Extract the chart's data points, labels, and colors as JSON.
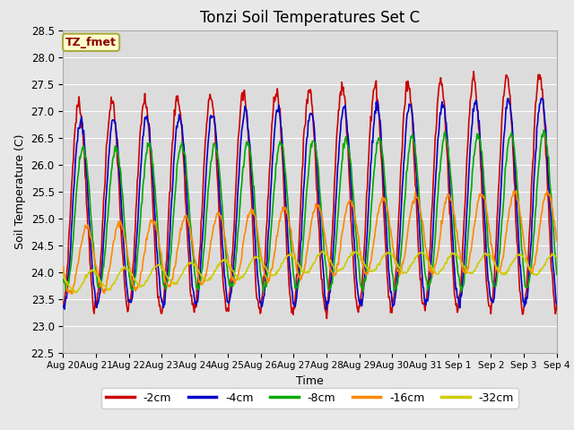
{
  "title": "Tonzi Soil Temperatures Set C",
  "xlabel": "Time",
  "ylabel": "Soil Temperature (C)",
  "ylim": [
    22.5,
    28.5
  ],
  "yticks": [
    22.5,
    23.0,
    23.5,
    24.0,
    24.5,
    25.0,
    25.5,
    26.0,
    26.5,
    27.0,
    27.5,
    28.0,
    28.5
  ],
  "colors": {
    "-2cm": "#cc0000",
    "-4cm": "#0000cc",
    "-8cm": "#00aa00",
    "-16cm": "#ff8800",
    "-32cm": "#cccc00"
  },
  "legend_label": "TZ_fmet",
  "legend_label_color": "#8b0000",
  "legend_bg": "#ffffcc",
  "legend_edge": "#aaaa44",
  "plot_bg": "#dcdcdc",
  "grid_color": "#ffffff",
  "fig_bg": "#e8e8e8"
}
